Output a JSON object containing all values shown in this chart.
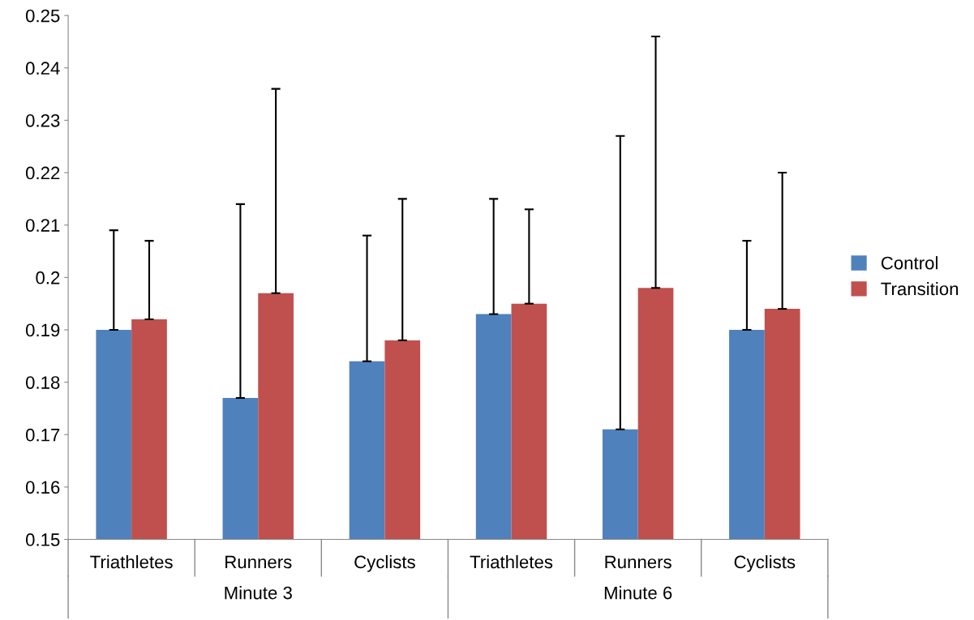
{
  "chart_data": {
    "type": "bar",
    "categories": [
      "Triathletes",
      "Runners",
      "Cyclists",
      "Triathletes",
      "Runners",
      "Cyclists"
    ],
    "series": [
      {
        "name": "Control",
        "color": "#4f81bd",
        "values": [
          0.19,
          0.177,
          0.184,
          0.193,
          0.171,
          0.19
        ],
        "errors": [
          [
            0.19,
            0.209
          ],
          [
            0.177,
            0.214
          ],
          [
            0.184,
            0.208
          ],
          [
            0.193,
            0.215
          ],
          [
            0.171,
            0.227
          ],
          [
            0.19,
            0.207
          ]
        ]
      },
      {
        "name": "Transition",
        "color": "#c0504d",
        "values": [
          0.192,
          0.197,
          0.188,
          0.195,
          0.198,
          0.194
        ],
        "errors": [
          [
            0.192,
            0.207
          ],
          [
            0.197,
            0.236
          ],
          [
            0.188,
            0.215
          ],
          [
            0.195,
            0.213
          ],
          [
            0.198,
            0.246
          ],
          [
            0.194,
            0.22
          ]
        ]
      }
    ],
    "ylim": [
      0.15,
      0.25
    ],
    "yticks": [
      0.15,
      0.16,
      0.17,
      0.18,
      0.19,
      {
        "value": 0.2,
        "label": "0.2"
      },
      0.21,
      0.22,
      0.23,
      0.24,
      0.25
    ],
    "annotations": [
      "Minute 3",
      "Minute 6"
    ],
    "grid": false,
    "legend": "right"
  }
}
